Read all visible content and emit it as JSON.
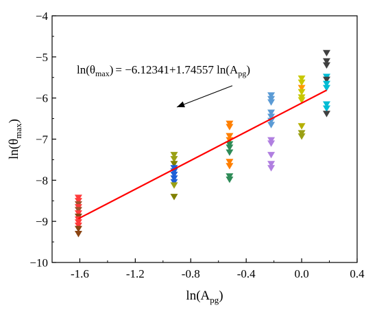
{
  "chart_data": {
    "type": "scatter",
    "xlabel_base": "ln(A",
    "xlabel_sub": "pg",
    "xlabel_end": ")",
    "ylabel_base": "ln(θ",
    "ylabel_sub": "max",
    "ylabel_end": ")",
    "xlim": [
      -1.8,
      0.4
    ],
    "ylim": [
      -10,
      -4
    ],
    "x_ticks": [
      -1.6,
      -1.2,
      -0.8,
      -0.4,
      0.0,
      0.4
    ],
    "x_tick_labels": [
      "-1.6",
      "-1.2",
      "-0.8",
      "-0.4",
      "0.0",
      "0.4"
    ],
    "y_ticks": [
      -10,
      -9,
      -8,
      -7,
      -6,
      -5,
      -4
    ],
    "y_tick_labels": [
      "−10",
      "−9",
      "−8",
      "−7",
      "−6",
      "−5",
      "−4"
    ],
    "marker": "triangle-down",
    "fit_line": {
      "intercept": -6.12341,
      "slope": 1.74557,
      "x_range": [
        -1.61,
        0.18
      ],
      "color": "#ff0000"
    },
    "annotation": {
      "lhs_base": "ln(θ",
      "lhs_sub": "max",
      "lhs_end": ")",
      "rhs_prefix": "= −6.12341+1.74557 ln(A",
      "rhs_sub": "pg",
      "rhs_end": ")",
      "arrow_from": [
        -0.5,
        -5.7
      ],
      "arrow_to": [
        -0.9,
        -6.22
      ]
    },
    "groups": [
      {
        "x": -1.61,
        "points": [
          {
            "y": -8.42,
            "color": "#ff3b3b"
          },
          {
            "y": -8.5,
            "color": "#ff3b3b"
          },
          {
            "y": -8.58,
            "color": "#a0522d"
          },
          {
            "y": -8.65,
            "color": "#ff3b3b"
          },
          {
            "y": -8.72,
            "color": "#a0522d"
          },
          {
            "y": -8.8,
            "color": "#ff3b3b"
          },
          {
            "y": -8.88,
            "color": "#8b4513"
          },
          {
            "y": -8.95,
            "color": "#ff3b3b"
          },
          {
            "y": -9.02,
            "color": "#ff3b3b"
          },
          {
            "y": -9.1,
            "color": "#ff3b3b"
          },
          {
            "y": -9.18,
            "color": "#8b4513"
          },
          {
            "y": -9.3,
            "color": "#8b4513"
          }
        ]
      },
      {
        "x": -0.92,
        "points": [
          {
            "y": -7.38,
            "color": "#9aa014"
          },
          {
            "y": -7.48,
            "color": "#9aa014"
          },
          {
            "y": -7.6,
            "color": "#808000"
          },
          {
            "y": -7.7,
            "color": "#1e5fd6"
          },
          {
            "y": -7.78,
            "color": "#1e5fd6"
          },
          {
            "y": -7.86,
            "color": "#1e5fd6"
          },
          {
            "y": -7.95,
            "color": "#1e5fd6"
          },
          {
            "y": -8.04,
            "color": "#1e5fd6"
          },
          {
            "y": -8.12,
            "color": "#9aa014"
          },
          {
            "y": -8.4,
            "color": "#808000"
          }
        ]
      },
      {
        "x": -0.52,
        "points": [
          {
            "y": -6.62,
            "color": "#ff7f00"
          },
          {
            "y": -6.7,
            "color": "#ff7f00"
          },
          {
            "y": -6.92,
            "color": "#ff7f00"
          },
          {
            "y": -7.02,
            "color": "#ff7f00"
          },
          {
            "y": -7.12,
            "color": "#2e8b57"
          },
          {
            "y": -7.2,
            "color": "#2e8b57"
          },
          {
            "y": -7.32,
            "color": "#2e8b57"
          },
          {
            "y": -7.55,
            "color": "#ff7f00"
          },
          {
            "y": -7.65,
            "color": "#ff7f00"
          },
          {
            "y": -7.9,
            "color": "#2e8b57"
          },
          {
            "y": -7.98,
            "color": "#2e8b57"
          }
        ]
      },
      {
        "x": -0.22,
        "points": [
          {
            "y": -5.93,
            "color": "#5b9bd5"
          },
          {
            "y": -6.02,
            "color": "#5b9bd5"
          },
          {
            "y": -6.1,
            "color": "#5b9bd5"
          },
          {
            "y": -6.35,
            "color": "#5b9bd5"
          },
          {
            "y": -6.45,
            "color": "#5b9bd5"
          },
          {
            "y": -6.55,
            "color": "#5b9bd5"
          },
          {
            "y": -6.65,
            "color": "#5b9bd5"
          },
          {
            "y": -7.02,
            "color": "#b07fe0"
          },
          {
            "y": -7.1,
            "color": "#b07fe0"
          },
          {
            "y": -7.38,
            "color": "#b07fe0"
          },
          {
            "y": -7.6,
            "color": "#b07fe0"
          },
          {
            "y": -7.7,
            "color": "#b07fe0"
          }
        ]
      },
      {
        "x": 0.0,
        "points": [
          {
            "y": -5.52,
            "color": "#c8c800"
          },
          {
            "y": -5.62,
            "color": "#c8c800"
          },
          {
            "y": -5.75,
            "color": "#ff9900"
          },
          {
            "y": -5.85,
            "color": "#c8c800"
          },
          {
            "y": -5.98,
            "color": "#c8c800"
          },
          {
            "y": -6.05,
            "color": "#c8c800"
          },
          {
            "y": -6.68,
            "color": "#b5b000"
          },
          {
            "y": -6.85,
            "color": "#9aa014"
          },
          {
            "y": -6.93,
            "color": "#9aa014"
          }
        ]
      },
      {
        "x": 0.18,
        "points": [
          {
            "y": -4.9,
            "color": "#404040"
          },
          {
            "y": -5.1,
            "color": "#404040"
          },
          {
            "y": -5.2,
            "color": "#404040"
          },
          {
            "y": -5.48,
            "color": "#00bcd4"
          },
          {
            "y": -5.55,
            "color": "#404040"
          },
          {
            "y": -5.65,
            "color": "#00bcd4"
          },
          {
            "y": -5.75,
            "color": "#00bcd4"
          },
          {
            "y": -6.15,
            "color": "#00bcd4"
          },
          {
            "y": -6.25,
            "color": "#00bcd4"
          },
          {
            "y": -6.38,
            "color": "#404040"
          }
        ]
      }
    ]
  }
}
